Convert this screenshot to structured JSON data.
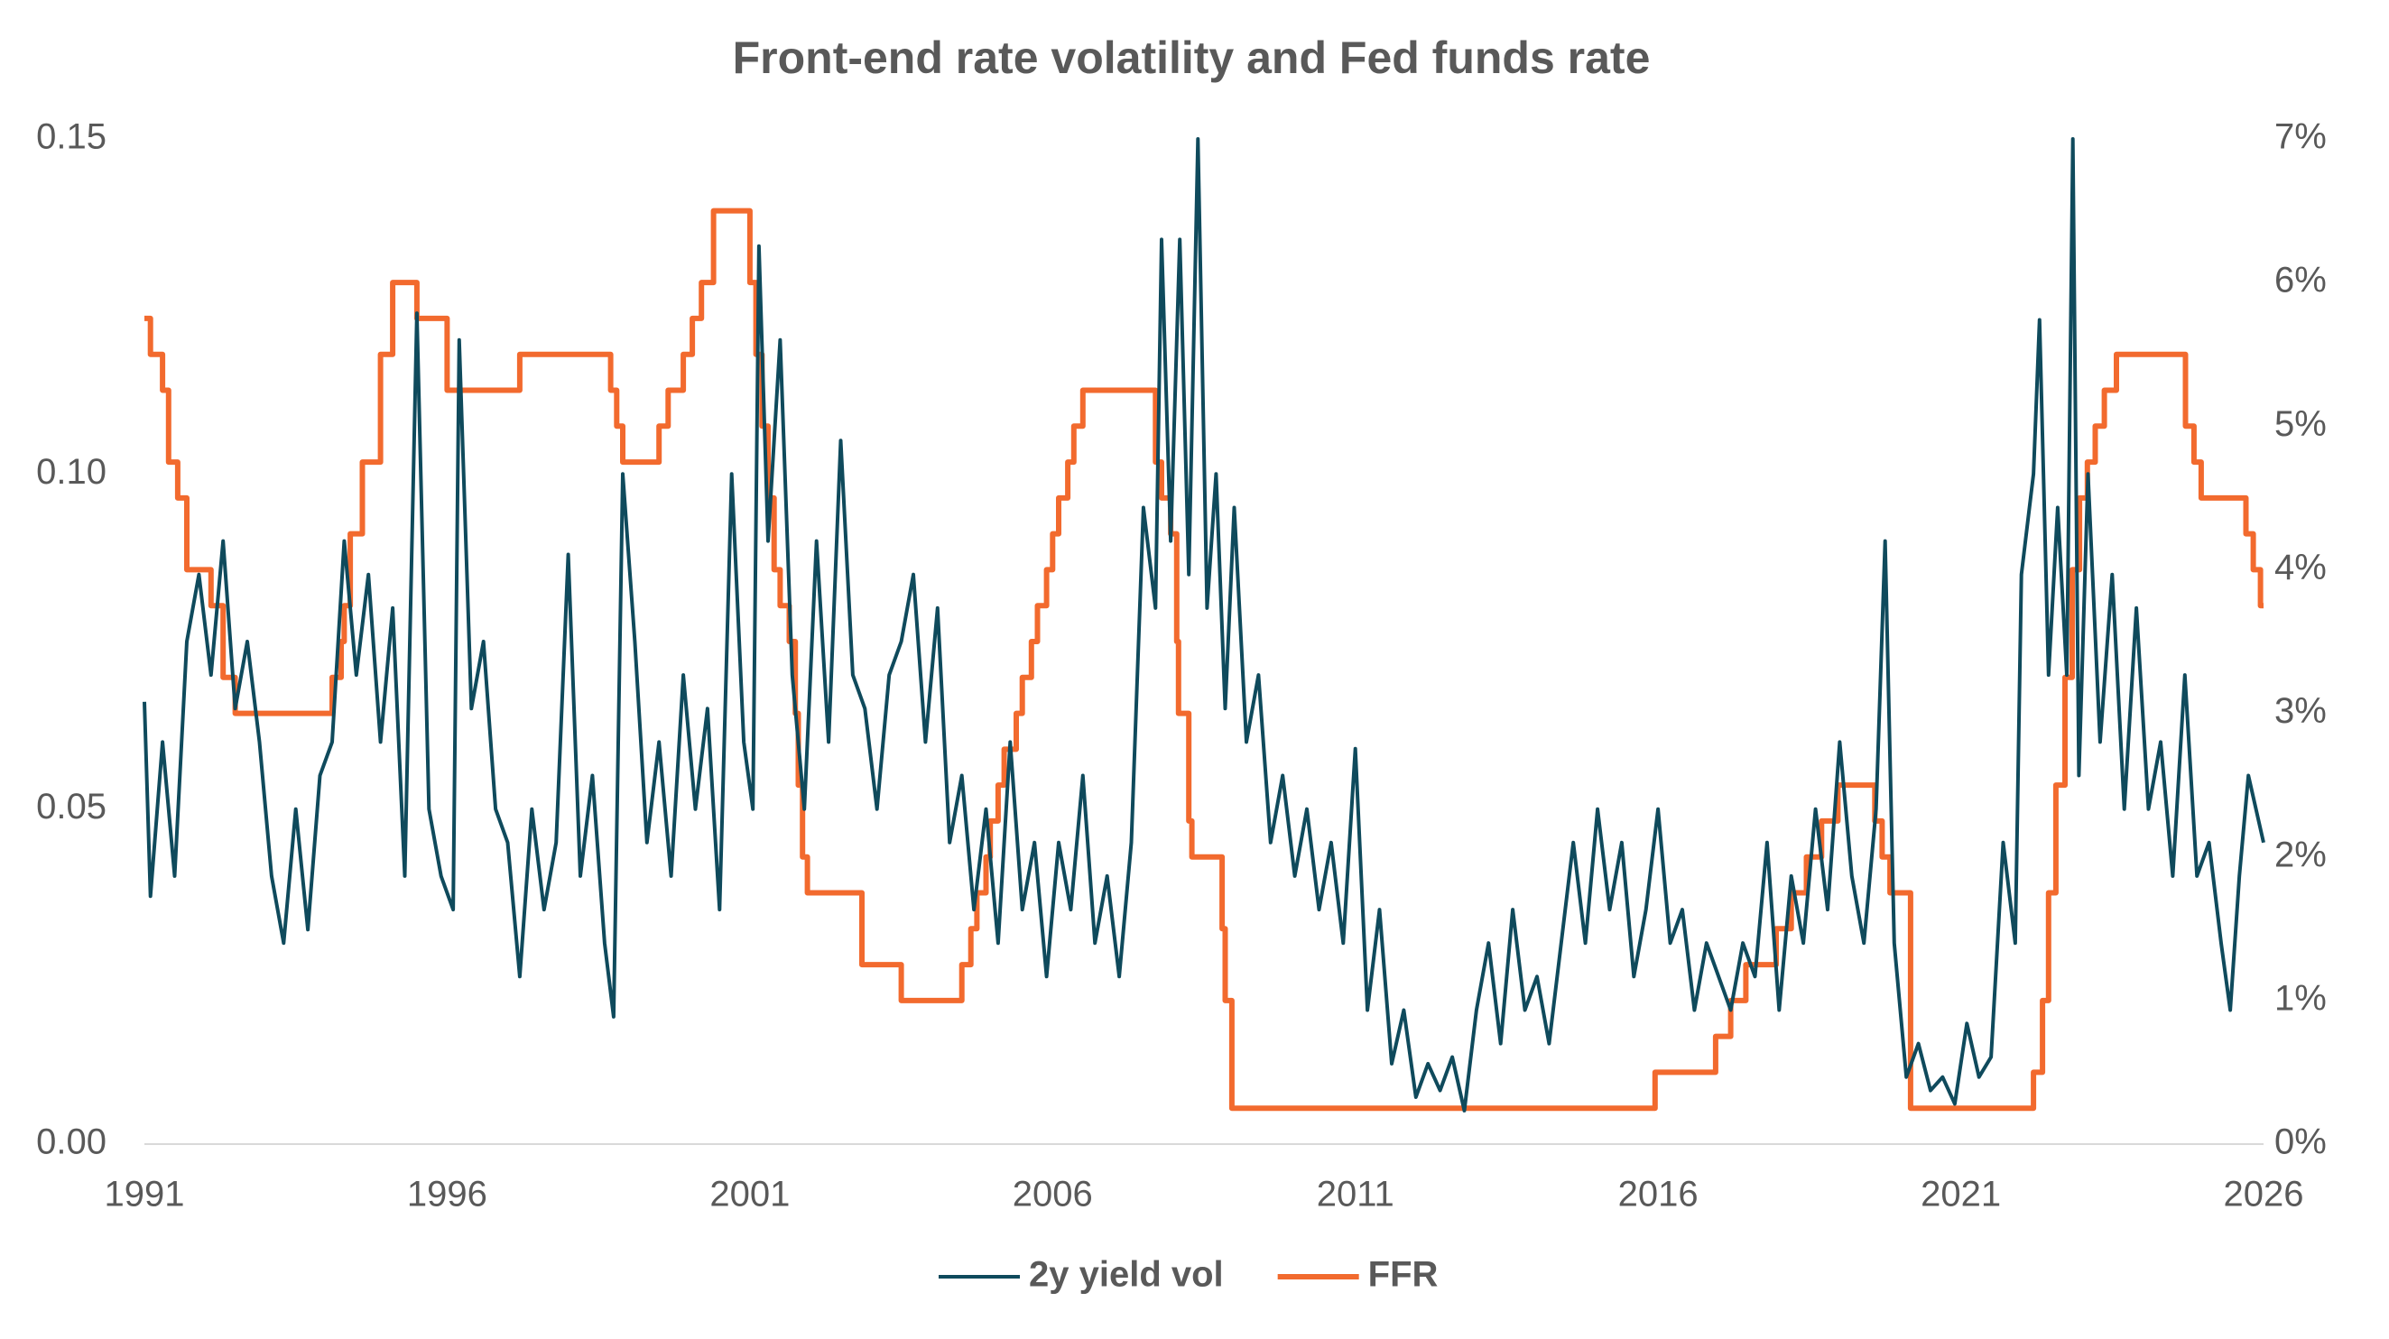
{
  "chart_data": {
    "type": "line",
    "title": "Front-end rate volatility and Fed funds rate",
    "xlim": [
      1991,
      2026
    ],
    "xticks": [
      1991,
      1996,
      2001,
      2006,
      2011,
      2016,
      2021,
      2026
    ],
    "ylim": [
      0,
      0.15
    ],
    "yticks": [
      {
        "value": 0,
        "label": "0.00"
      },
      0.05,
      {
        "value": 0.1,
        "label": "0.10"
      },
      0.15
    ],
    "y2lim": [
      0,
      7
    ],
    "y2ticks": [
      {
        "value": 0,
        "label": "0%"
      },
      {
        "value": 1,
        "label": "1%"
      },
      {
        "value": 2,
        "label": "2%"
      },
      {
        "value": 3,
        "label": "3%"
      },
      {
        "value": 4,
        "label": "4%"
      },
      {
        "value": 5,
        "label": "5%"
      },
      {
        "value": 6,
        "label": "6%"
      },
      {
        "value": 7,
        "label": "7%"
      }
    ],
    "legend": "bottom",
    "series": [
      {
        "name": "2y yield vol",
        "color": "#0f4a5c",
        "x": [
          1991.0,
          1991.1,
          1991.3,
          1991.5,
          1991.7,
          1991.9,
          1992.1,
          1992.3,
          1992.5,
          1992.7,
          1992.9,
          1993.1,
          1993.3,
          1993.5,
          1993.7,
          1993.9,
          1994.1,
          1994.3,
          1994.5,
          1994.7,
          1994.9,
          1995.1,
          1995.3,
          1995.5,
          1995.7,
          1995.9,
          1996.1,
          1996.2,
          1996.4,
          1996.6,
          1996.8,
          1997.0,
          1997.2,
          1997.4,
          1997.6,
          1997.8,
          1998.0,
          1998.2,
          1998.4,
          1998.6,
          1998.75,
          1998.9,
          1999.1,
          1999.3,
          1999.5,
          1999.7,
          1999.9,
          2000.1,
          2000.3,
          2000.5,
          2000.7,
          2000.9,
          2001.05,
          2001.15,
          2001.3,
          2001.5,
          2001.7,
          2001.9,
          2002.1,
          2002.3,
          2002.5,
          2002.7,
          2002.9,
          2003.1,
          2003.3,
          2003.5,
          2003.7,
          2003.9,
          2004.1,
          2004.3,
          2004.5,
          2004.7,
          2004.9,
          2005.1,
          2005.3,
          2005.5,
          2005.7,
          2005.9,
          2006.1,
          2006.3,
          2006.5,
          2006.7,
          2006.9,
          2007.1,
          2007.3,
          2007.5,
          2007.7,
          2007.8,
          2007.95,
          2008.1,
          2008.25,
          2008.4,
          2008.55,
          2008.7,
          2008.85,
          2009.0,
          2009.2,
          2009.4,
          2009.6,
          2009.8,
          2010.0,
          2010.2,
          2010.4,
          2010.6,
          2010.8,
          2011.0,
          2011.2,
          2011.4,
          2011.6,
          2011.8,
          2012.0,
          2012.2,
          2012.4,
          2012.6,
          2012.8,
          2013.0,
          2013.2,
          2013.4,
          2013.6,
          2013.8,
          2014.0,
          2014.2,
          2014.4,
          2014.6,
          2014.8,
          2015.0,
          2015.2,
          2015.4,
          2015.6,
          2015.8,
          2016.0,
          2016.2,
          2016.4,
          2016.6,
          2016.8,
          2017.0,
          2017.2,
          2017.4,
          2017.6,
          2017.8,
          2018.0,
          2018.2,
          2018.4,
          2018.6,
          2018.8,
          2019.0,
          2019.2,
          2019.4,
          2019.6,
          2019.75,
          2019.9,
          2020.1,
          2020.3,
          2020.5,
          2020.7,
          2020.9,
          2021.1,
          2021.3,
          2021.5,
          2021.7,
          2021.9,
          2022.0,
          2022.2,
          2022.3,
          2022.45,
          2022.6,
          2022.75,
          2022.85,
          2022.95,
          2023.1,
          2023.3,
          2023.5,
          2023.7,
          2023.9,
          2024.1,
          2024.3,
          2024.5,
          2024.7,
          2024.9,
          2025.1,
          2025.3,
          2025.45,
          2025.6,
          2025.75,
          2026.0
        ],
        "values": [
          0.066,
          0.037,
          0.06,
          0.04,
          0.075,
          0.085,
          0.07,
          0.09,
          0.065,
          0.075,
          0.06,
          0.04,
          0.03,
          0.05,
          0.032,
          0.055,
          0.06,
          0.09,
          0.07,
          0.085,
          0.06,
          0.08,
          0.04,
          0.124,
          0.05,
          0.04,
          0.035,
          0.12,
          0.065,
          0.075,
          0.05,
          0.045,
          0.025,
          0.05,
          0.035,
          0.045,
          0.088,
          0.04,
          0.055,
          0.03,
          0.019,
          0.1,
          0.075,
          0.045,
          0.06,
          0.04,
          0.07,
          0.05,
          0.065,
          0.035,
          0.1,
          0.06,
          0.05,
          0.134,
          0.09,
          0.12,
          0.07,
          0.05,
          0.09,
          0.06,
          0.105,
          0.07,
          0.065,
          0.05,
          0.07,
          0.075,
          0.085,
          0.06,
          0.08,
          0.045,
          0.055,
          0.035,
          0.05,
          0.03,
          0.06,
          0.035,
          0.045,
          0.025,
          0.045,
          0.035,
          0.055,
          0.03,
          0.04,
          0.025,
          0.045,
          0.095,
          0.08,
          0.135,
          0.09,
          0.135,
          0.085,
          0.15,
          0.08,
          0.1,
          0.065,
          0.095,
          0.06,
          0.07,
          0.045,
          0.055,
          0.04,
          0.05,
          0.035,
          0.045,
          0.03,
          0.059,
          0.02,
          0.035,
          0.012,
          0.02,
          0.007,
          0.012,
          0.008,
          0.013,
          0.005,
          0.02,
          0.03,
          0.015,
          0.035,
          0.02,
          0.025,
          0.015,
          0.03,
          0.045,
          0.03,
          0.05,
          0.035,
          0.045,
          0.025,
          0.035,
          0.05,
          0.03,
          0.035,
          0.02,
          0.03,
          0.025,
          0.02,
          0.03,
          0.025,
          0.045,
          0.02,
          0.04,
          0.03,
          0.05,
          0.035,
          0.06,
          0.04,
          0.03,
          0.05,
          0.09,
          0.03,
          0.01,
          0.015,
          0.008,
          0.01,
          0.006,
          0.018,
          0.01,
          0.013,
          0.045,
          0.03,
          0.085,
          0.1,
          0.123,
          0.07,
          0.095,
          0.07,
          0.15,
          0.055,
          0.1,
          0.06,
          0.085,
          0.05,
          0.08,
          0.05,
          0.06,
          0.04,
          0.07,
          0.04,
          0.045,
          0.03,
          0.02,
          0.04,
          0.055,
          0.045
        ]
      },
      {
        "name": "FFR",
        "color": "#f26a2e",
        "axis": "y2",
        "x": [
          1991.0,
          1991.1,
          1991.1,
          1991.3,
          1991.3,
          1991.4,
          1991.4,
          1991.55,
          1991.55,
          1991.7,
          1991.7,
          1992.1,
          1992.1,
          1992.3,
          1992.3,
          1992.5,
          1992.5,
          1994.1,
          1994.1,
          1994.25,
          1994.25,
          1994.3,
          1994.3,
          1994.4,
          1994.4,
          1994.6,
          1994.6,
          1994.9,
          1994.9,
          1995.1,
          1995.1,
          1995.5,
          1995.5,
          1996.0,
          1996.0,
          1997.2,
          1997.2,
          1998.7,
          1998.7,
          1998.8,
          1998.8,
          1998.9,
          1998.9,
          1999.5,
          1999.5,
          1999.65,
          1999.65,
          1999.9,
          1999.9,
          2000.05,
          2000.05,
          2000.2,
          2000.2,
          2000.4,
          2000.4,
          2001.0,
          2001.0,
          2001.1,
          2001.1,
          2001.2,
          2001.2,
          2001.3,
          2001.3,
          2001.4,
          2001.4,
          2001.5,
          2001.5,
          2001.65,
          2001.65,
          2001.75,
          2001.75,
          2001.8,
          2001.8,
          2001.87,
          2001.87,
          2001.95,
          2001.95,
          2002.85,
          2002.85,
          2003.5,
          2003.5,
          2004.5,
          2004.5,
          2004.65,
          2004.65,
          2004.75,
          2004.75,
          2004.9,
          2004.9,
          2004.97,
          2004.97,
          2005.1,
          2005.1,
          2005.2,
          2005.2,
          2005.4,
          2005.4,
          2005.5,
          2005.5,
          2005.65,
          2005.65,
          2005.75,
          2005.75,
          2005.9,
          2005.9,
          2006.0,
          2006.0,
          2006.1,
          2006.1,
          2006.25,
          2006.25,
          2006.35,
          2006.35,
          2006.5,
          2006.5,
          2007.7,
          2007.7,
          2007.8,
          2007.8,
          2007.95,
          2007.95,
          2008.05,
          2008.05,
          2008.08,
          2008.08,
          2008.25,
          2008.25,
          2008.3,
          2008.3,
          2008.8,
          2008.8,
          2008.85,
          2008.85,
          2008.96,
          2008.96,
          2015.95,
          2015.95,
          2016.95,
          2016.95,
          2017.2,
          2017.2,
          2017.45,
          2017.45,
          2017.95,
          2017.95,
          2018.2,
          2018.2,
          2018.45,
          2018.45,
          2018.7,
          2018.7,
          2018.97,
          2018.97,
          2019.58,
          2019.58,
          2019.7,
          2019.7,
          2019.83,
          2019.83,
          2020.17,
          2020.17,
          2022.2,
          2022.2,
          2022.35,
          2022.35,
          2022.45,
          2022.45,
          2022.57,
          2022.57,
          2022.72,
          2022.72,
          2022.84,
          2022.84,
          2022.96,
          2022.96,
          2023.09,
          2023.09,
          2023.22,
          2023.22,
          2023.37,
          2023.37,
          2023.57,
          2023.57,
          2024.71,
          2024.71,
          2024.85,
          2024.85,
          2024.97,
          2024.97,
          2025.71,
          2025.71,
          2025.83,
          2025.83,
          2025.95,
          2025.95,
          2026.0
        ],
        "values": [
          5.75,
          5.75,
          5.5,
          5.5,
          5.25,
          5.25,
          4.75,
          4.75,
          4.5,
          4.5,
          4.0,
          4.0,
          3.75,
          3.75,
          3.25,
          3.25,
          3.0,
          3.0,
          3.25,
          3.25,
          3.5,
          3.5,
          3.75,
          3.75,
          4.25,
          4.25,
          4.75,
          4.75,
          5.5,
          5.5,
          6.0,
          6.0,
          5.75,
          5.75,
          5.25,
          5.25,
          5.5,
          5.5,
          5.25,
          5.25,
          5.0,
          5.0,
          4.75,
          4.75,
          5.0,
          5.0,
          5.25,
          5.25,
          5.5,
          5.5,
          5.75,
          5.75,
          6.0,
          6.0,
          6.5,
          6.5,
          6.0,
          6.0,
          5.5,
          5.5,
          5.0,
          5.0,
          4.5,
          4.5,
          4.0,
          4.0,
          3.75,
          3.75,
          3.5,
          3.5,
          3.0,
          3.0,
          2.5,
          2.5,
          2.0,
          2.0,
          1.75,
          1.75,
          1.25,
          1.25,
          1.0,
          1.0,
          1.25,
          1.25,
          1.5,
          1.5,
          1.75,
          1.75,
          2.0,
          2.0,
          2.25,
          2.25,
          2.5,
          2.5,
          2.75,
          2.75,
          3.0,
          3.0,
          3.25,
          3.25,
          3.5,
          3.5,
          3.75,
          3.75,
          4.0,
          4.0,
          4.25,
          4.25,
          4.5,
          4.5,
          4.75,
          4.75,
          5.0,
          5.0,
          5.25,
          5.25,
          4.75,
          4.75,
          4.5,
          4.5,
          4.25,
          4.25,
          3.5,
          3.5,
          3.0,
          3.0,
          2.25,
          2.25,
          2.0,
          2.0,
          1.5,
          1.5,
          1.0,
          1.0,
          0.25,
          0.25,
          0.5,
          0.5,
          0.75,
          0.75,
          1.0,
          1.0,
          1.25,
          1.25,
          1.5,
          1.5,
          1.75,
          1.75,
          2.0,
          2.0,
          2.25,
          2.25,
          2.5,
          2.5,
          2.25,
          2.25,
          2.0,
          2.0,
          1.75,
          1.75,
          0.25,
          0.25,
          0.5,
          0.5,
          1.0,
          1.0,
          1.75,
          1.75,
          2.5,
          2.5,
          3.25,
          3.25,
          4.0,
          4.0,
          4.5,
          4.5,
          4.75,
          4.75,
          5.0,
          5.0,
          5.25,
          5.25,
          5.5,
          5.5,
          5.0,
          5.0,
          4.75,
          4.75,
          4.5,
          4.5,
          4.25,
          4.25,
          4.0,
          4.0,
          3.75,
          3.75
        ]
      }
    ]
  }
}
